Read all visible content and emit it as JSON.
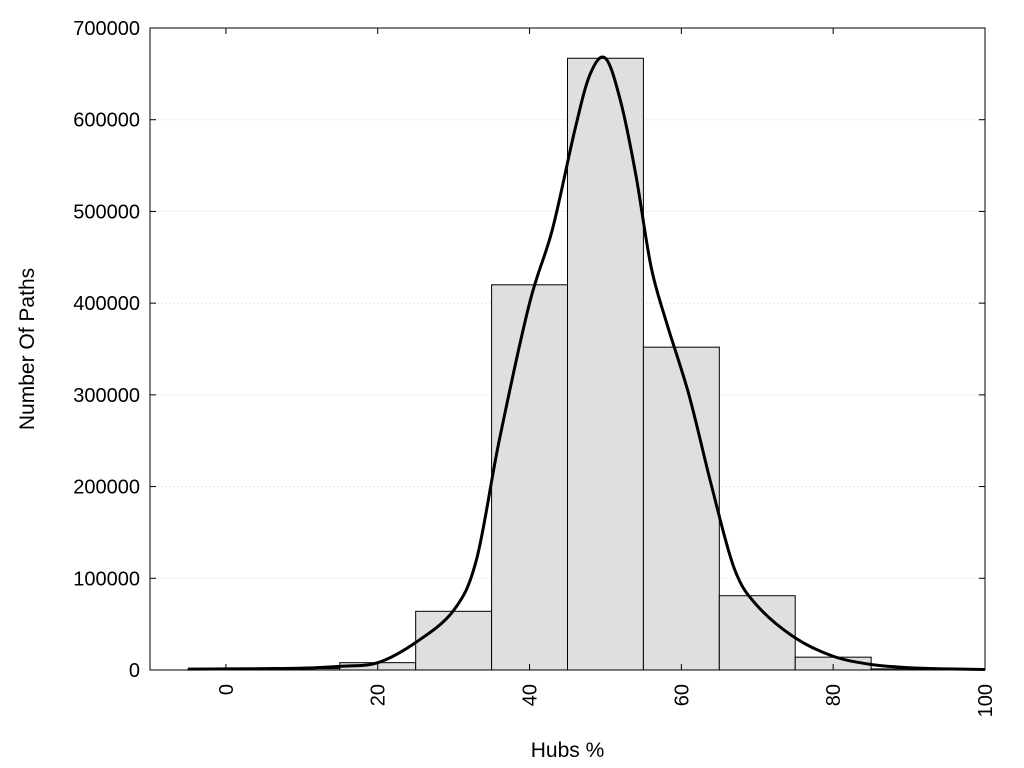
{
  "chart_data": {
    "type": "bar",
    "title": "",
    "xlabel": "Hubs %",
    "ylabel": "Number Of Paths",
    "xlim": [
      -10,
      100
    ],
    "ylim": [
      0,
      700000
    ],
    "grid": true,
    "bin_width": 10,
    "x": [
      0,
      10,
      20,
      30,
      40,
      50,
      60,
      70,
      80,
      90
    ],
    "values": [
      1000,
      1500,
      8000,
      64000,
      420000,
      667000,
      352000,
      81000,
      14000,
      1200
    ],
    "x_ticks": [
      0,
      20,
      40,
      60,
      80,
      100
    ],
    "x_tick_labels": [
      "0",
      "20",
      "40",
      "60",
      "80",
      "100"
    ],
    "y_ticks": [
      0,
      100000,
      200000,
      300000,
      400000,
      500000,
      600000,
      700000
    ],
    "y_tick_labels": [
      "0",
      "100000",
      "200000",
      "300000",
      "400000",
      "500000",
      "600000",
      "700000"
    ],
    "curve": {
      "x": [
        -5,
        0,
        5,
        10,
        15,
        20,
        25,
        30,
        33,
        36,
        40,
        43,
        46,
        48,
        50,
        52,
        54,
        56,
        58,
        61,
        64,
        67,
        70,
        75,
        80,
        85,
        90,
        95,
        100
      ],
      "y": [
        1000,
        1200,
        1500,
        2000,
        4000,
        8000,
        30000,
        65000,
        120000,
        250000,
        400000,
        480000,
        590000,
        650000,
        667000,
        620000,
        540000,
        440000,
        380000,
        300000,
        200000,
        110000,
        70000,
        35000,
        15000,
        6000,
        2500,
        1200,
        500
      ]
    },
    "colors": {
      "bar_fill": "#dfdfdf",
      "bar_stroke": "#000000",
      "curve": "#000000",
      "grid": "#cccccc"
    }
  }
}
